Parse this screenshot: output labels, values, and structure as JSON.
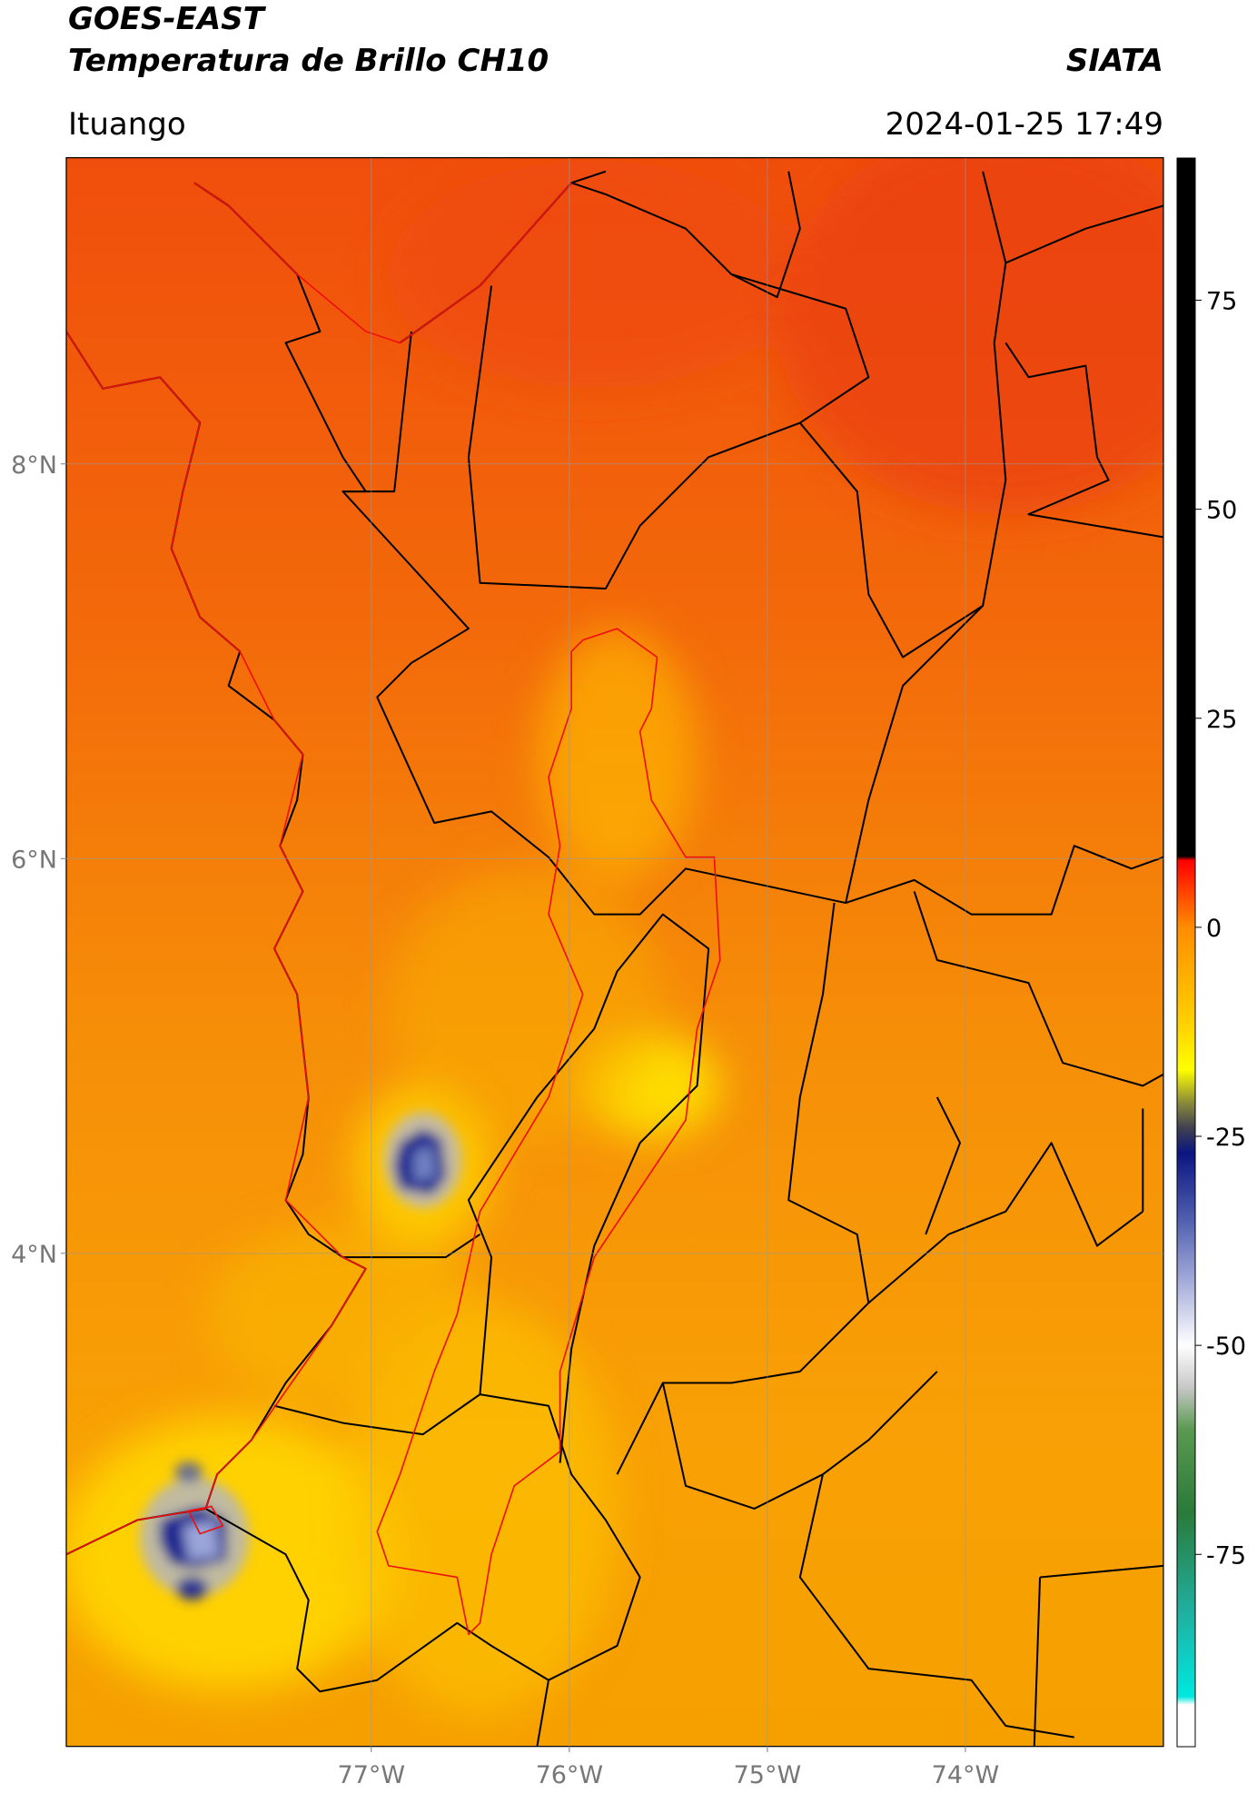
{
  "header": {
    "satellite": "GOES-EAST",
    "product": "Temperatura de Brillo CH10",
    "source": "SIATA",
    "location": "Ituango",
    "datetime": "2024-01-25 17:49"
  },
  "map": {
    "xlim": [
      -78.54,
      -73.0
    ],
    "ylim": [
      1.5,
      9.55
    ],
    "grid": true,
    "xticks": [
      {
        "value": -77,
        "label": "77°W"
      },
      {
        "value": -76,
        "label": "76°W"
      },
      {
        "value": -75,
        "label": "75°W"
      },
      {
        "value": -74,
        "label": "74°W"
      }
    ],
    "yticks": [
      {
        "value": 4,
        "label": "4°N"
      },
      {
        "value": 6,
        "label": "6°N"
      },
      {
        "value": 8,
        "label": "8°N"
      }
    ]
  },
  "colorbar": {
    "clim": [
      -98,
      92
    ],
    "ticks": [
      75,
      50,
      25,
      0,
      -25,
      -50,
      -75
    ],
    "colormap": [
      {
        "value": 92,
        "color": "#000000"
      },
      {
        "value": 8.5,
        "color": "#000000"
      },
      {
        "value": 8,
        "color": "#ff0000"
      },
      {
        "value": 0,
        "color": "#ff8c00"
      },
      {
        "value": -12,
        "color": "#ffd400"
      },
      {
        "value": -17,
        "color": "#ffff00"
      },
      {
        "value": -21,
        "color": "#8a8a3a"
      },
      {
        "value": -24,
        "color": "#404050"
      },
      {
        "value": -27,
        "color": "#0a1680"
      },
      {
        "value": -35,
        "color": "#5060b0"
      },
      {
        "value": -42,
        "color": "#a0a8d8"
      },
      {
        "value": -50,
        "color": "#ffffff"
      },
      {
        "value": -55,
        "color": "#c8c8c8"
      },
      {
        "value": -60,
        "color": "#5a9a50"
      },
      {
        "value": -70,
        "color": "#2a7a3a"
      },
      {
        "value": -82,
        "color": "#20b0a0"
      },
      {
        "value": -92,
        "color": "#00e8e0"
      },
      {
        "value": -93,
        "color": "#ffffff"
      },
      {
        "value": -98,
        "color": "#ffffff"
      }
    ]
  }
}
